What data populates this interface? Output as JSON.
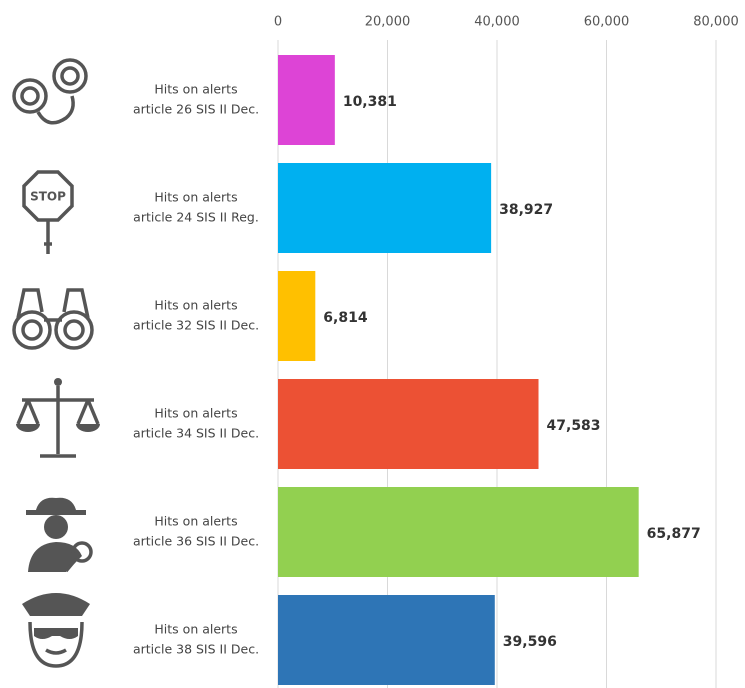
{
  "chart_data": {
    "type": "bar",
    "orientation": "horizontal",
    "categories": [
      [
        "Hits on alerts",
        "article 26 SIS II Dec."
      ],
      [
        "Hits on alerts",
        "article 24 SIS II Reg."
      ],
      [
        "Hits on alerts",
        "article 32 SIS II Dec."
      ],
      [
        "Hits on alerts",
        "article 34 SIS II Dec."
      ],
      [
        "Hits on alerts",
        "article 36 SIS II Dec."
      ],
      [
        "Hits on alerts",
        "article 38 SIS II Dec."
      ]
    ],
    "values": [
      10381,
      38927,
      6814,
      47583,
      65877,
      39596
    ],
    "value_labels": [
      "10,381",
      "38,927",
      "6,814",
      "47,583",
      "65,877",
      "39,596"
    ],
    "colors": [
      "#dd44d6",
      "#00b0f0",
      "#ffc000",
      "#ec5134",
      "#92d050",
      "#2e75b6"
    ],
    "xlim": [
      0,
      80000
    ],
    "xticks": [
      0,
      {
        "value": 20000,
        "label": "20,000"
      },
      {
        "value": 40000,
        "label": "40,000"
      },
      {
        "value": 60000,
        "label": "60,000"
      },
      {
        "value": 80000,
        "label": "80,000"
      }
    ],
    "grid": true
  },
  "stop_sign_text": "STOP"
}
